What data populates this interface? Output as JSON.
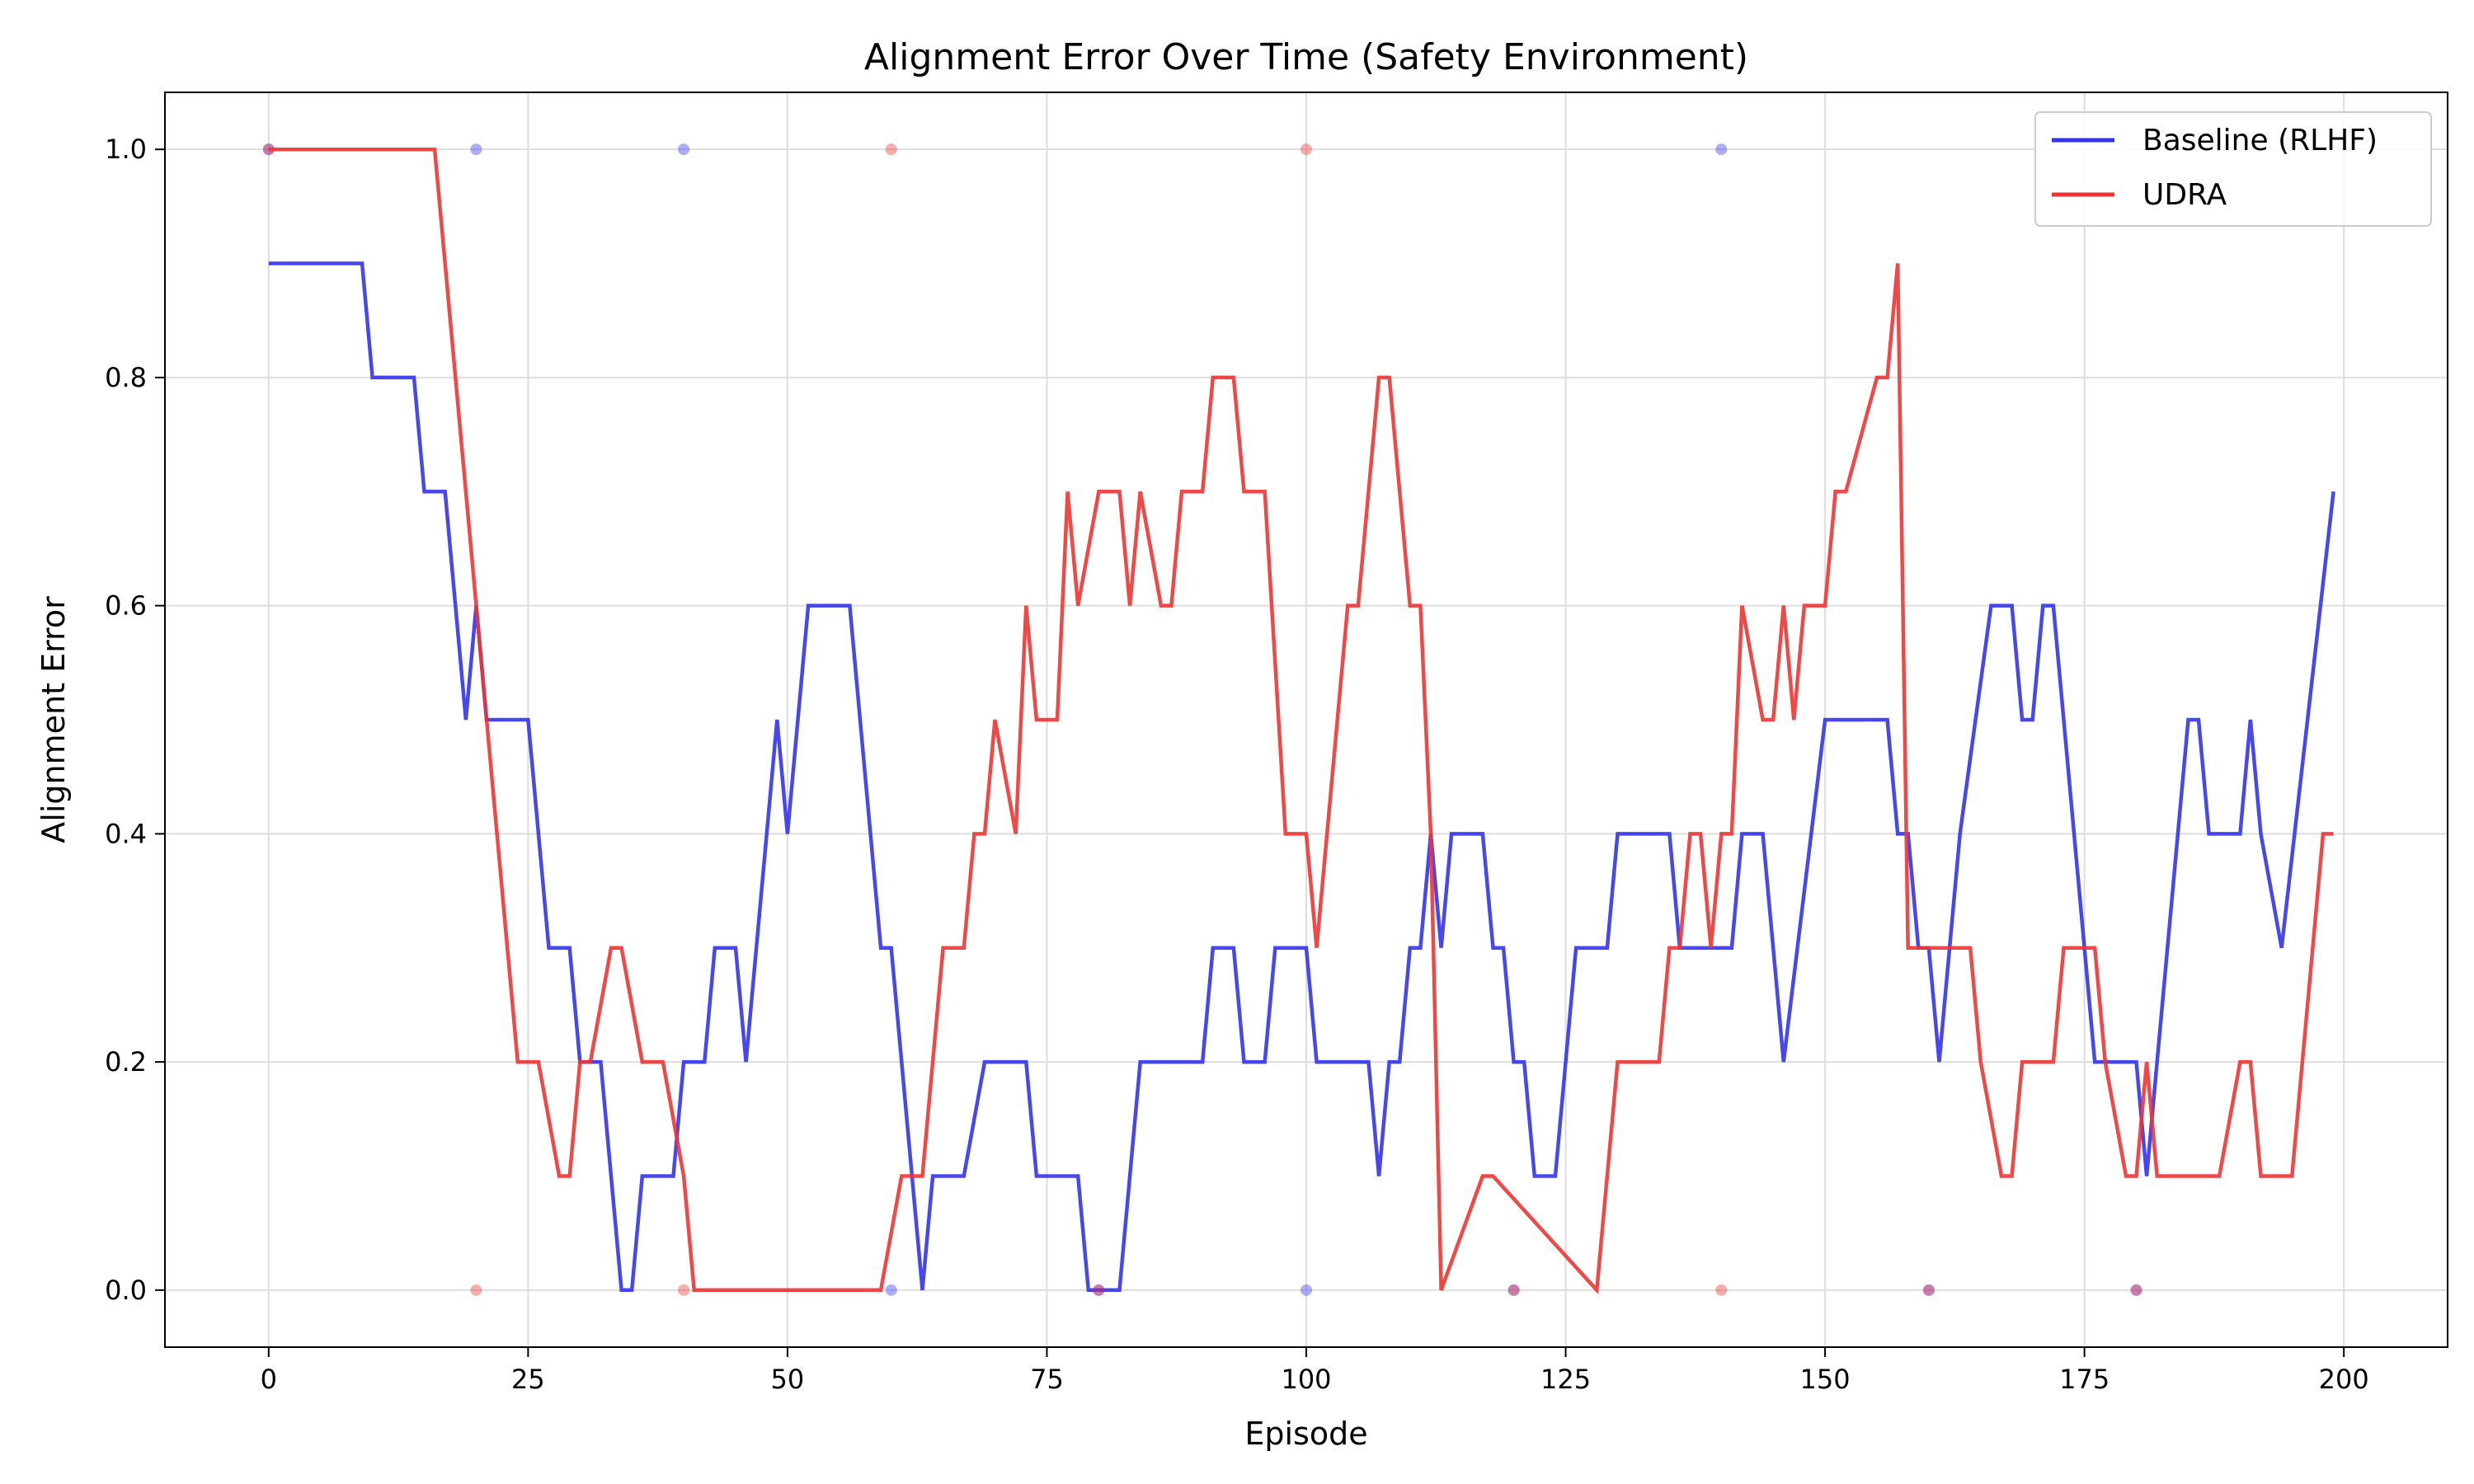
{
  "chart_data": {
    "type": "line",
    "title": "Alignment Error Over Time (Safety Environment)",
    "xlabel": "Episode",
    "ylabel": "Alignment Error",
    "xlim": [
      -10,
      210
    ],
    "ylim": [
      -0.05,
      1.05
    ],
    "xticks": [
      0,
      25,
      50,
      75,
      100,
      125,
      150,
      175,
      200
    ],
    "yticks": [
      0.0,
      0.2,
      0.4,
      0.6,
      0.8,
      1.0
    ],
    "grid": true,
    "legend_position": "top-right",
    "colors": {
      "baseline": "#3333ee",
      "udra": "#ee3333"
    },
    "series": [
      {
        "name": "Baseline (RLHF)",
        "color": "#3333ee",
        "x": [
          0,
          9,
          10,
          14,
          15,
          17,
          19,
          20,
          21,
          25,
          27,
          29,
          30,
          32,
          34,
          35,
          36,
          38,
          39,
          40,
          42,
          43,
          45,
          46,
          49,
          50,
          52,
          56,
          59,
          60,
          62,
          63,
          64,
          67,
          69,
          73,
          74,
          78,
          79,
          80,
          82,
          84,
          90,
          91,
          93,
          94,
          96,
          97,
          100,
          101,
          106,
          107,
          108,
          109,
          110,
          111,
          112,
          113,
          114,
          117,
          118,
          119,
          120,
          121,
          122,
          124,
          126,
          129,
          130,
          135,
          136,
          141,
          142,
          144,
          145,
          146,
          150,
          156,
          157,
          158,
          159,
          160,
          161,
          163,
          166,
          168,
          169,
          170,
          171,
          172,
          175,
          176,
          180,
          181,
          182,
          185,
          186,
          187,
          190,
          191,
          192,
          194,
          199
        ],
        "y": [
          0.9,
          0.9,
          0.8,
          0.8,
          0.7,
          0.7,
          0.5,
          0.6,
          0.5,
          0.5,
          0.3,
          0.3,
          0.2,
          0.2,
          0.0,
          0.0,
          0.1,
          0.1,
          0.1,
          0.2,
          0.2,
          0.3,
          0.3,
          0.2,
          0.5,
          0.4,
          0.6,
          0.6,
          0.3,
          0.3,
          0.1,
          0.0,
          0.1,
          0.1,
          0.2,
          0.2,
          0.1,
          0.1,
          0.0,
          0.0,
          0.0,
          0.2,
          0.2,
          0.3,
          0.3,
          0.2,
          0.2,
          0.3,
          0.3,
          0.2,
          0.2,
          0.1,
          0.2,
          0.2,
          0.3,
          0.3,
          0.4,
          0.3,
          0.4,
          0.4,
          0.3,
          0.3,
          0.2,
          0.2,
          0.1,
          0.1,
          0.3,
          0.3,
          0.4,
          0.4,
          0.3,
          0.3,
          0.4,
          0.4,
          0.3,
          0.2,
          0.5,
          0.5,
          0.4,
          0.4,
          0.3,
          0.3,
          0.2,
          0.4,
          0.6,
          0.6,
          0.5,
          0.5,
          0.6,
          0.6,
          0.3,
          0.2,
          0.2,
          0.1,
          0.2,
          0.5,
          0.5,
          0.4,
          0.4,
          0.5,
          0.4,
          0.3,
          0.7
        ],
        "markers": [
          [
            0,
            1.0
          ],
          [
            20,
            1.0
          ],
          [
            40,
            1.0
          ],
          [
            60,
            0.0
          ],
          [
            80,
            0.0
          ],
          [
            100,
            0.0
          ],
          [
            120,
            0.0
          ],
          [
            140,
            1.0
          ],
          [
            160,
            0.0
          ],
          [
            180,
            0.0
          ]
        ]
      },
      {
        "name": "UDRA",
        "color": "#ee3333",
        "x": [
          0,
          16,
          20,
          24,
          26,
          28,
          29,
          30,
          31,
          33,
          34,
          36,
          38,
          40,
          41,
          59,
          61,
          63,
          65,
          67,
          68,
          69,
          70,
          72,
          73,
          74,
          76,
          77,
          78,
          80,
          81,
          82,
          83,
          84,
          86,
          87,
          88,
          90,
          91,
          93,
          94,
          96,
          98,
          100,
          101,
          104,
          105,
          107,
          108,
          110,
          111,
          112,
          113,
          117,
          118,
          128,
          130,
          134,
          135,
          136,
          137,
          138,
          139,
          140,
          141,
          142,
          144,
          145,
          146,
          147,
          148,
          149,
          150,
          151,
          152,
          155,
          156,
          157,
          158,
          164,
          165,
          167,
          168,
          169,
          172,
          173,
          176,
          177,
          179,
          180,
          181,
          182,
          183,
          188,
          190,
          191,
          192,
          195,
          198,
          199
        ],
        "y": [
          1.0,
          1.0,
          0.6,
          0.2,
          0.2,
          0.1,
          0.1,
          0.2,
          0.2,
          0.3,
          0.3,
          0.2,
          0.2,
          0.1,
          0.0,
          0.0,
          0.1,
          0.1,
          0.3,
          0.3,
          0.4,
          0.4,
          0.5,
          0.4,
          0.6,
          0.5,
          0.5,
          0.7,
          0.6,
          0.7,
          0.7,
          0.7,
          0.6,
          0.7,
          0.6,
          0.6,
          0.7,
          0.7,
          0.8,
          0.8,
          0.7,
          0.7,
          0.4,
          0.4,
          0.3,
          0.6,
          0.6,
          0.8,
          0.8,
          0.6,
          0.6,
          0.4,
          0.0,
          0.1,
          0.1,
          0.0,
          0.2,
          0.2,
          0.3,
          0.3,
          0.4,
          0.4,
          0.3,
          0.4,
          0.4,
          0.6,
          0.5,
          0.5,
          0.6,
          0.5,
          0.6,
          0.6,
          0.6,
          0.7,
          0.7,
          0.8,
          0.8,
          0.9,
          0.3,
          0.3,
          0.2,
          0.1,
          0.1,
          0.2,
          0.2,
          0.3,
          0.3,
          0.2,
          0.1,
          0.1,
          0.2,
          0.1,
          0.1,
          0.1,
          0.2,
          0.2,
          0.1,
          0.1,
          0.4,
          0.4
        ],
        "markers": [
          [
            0,
            1.0
          ],
          [
            20,
            0.0
          ],
          [
            40,
            0.0
          ],
          [
            60,
            1.0
          ],
          [
            80,
            0.0
          ],
          [
            100,
            1.0
          ],
          [
            120,
            0.0
          ],
          [
            140,
            0.0
          ],
          [
            160,
            0.0
          ],
          [
            180,
            0.0
          ]
        ]
      }
    ]
  }
}
